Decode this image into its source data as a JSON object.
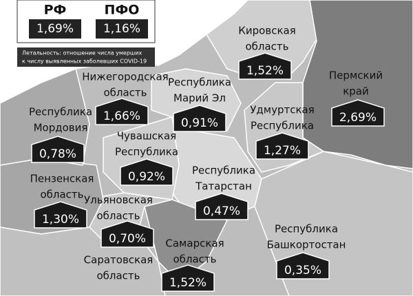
{
  "legend": {
    "items": [
      {
        "label": "РФ",
        "value": "1,69%"
      },
      {
        "label": "ПФО",
        "value": "1,16%"
      }
    ],
    "note": [
      "Летальность: отношение числа умерших",
      "к числу выявленных заболевших COVID-19"
    ]
  },
  "regions": [
    {
      "name": [
        "Кировская",
        "область"
      ],
      "value": "1,52%"
    },
    {
      "name": [
        "Пермский",
        "край"
      ],
      "value": "2,69%"
    },
    {
      "name": [
        "Нижегородская",
        "область"
      ],
      "value": "1,66%"
    },
    {
      "name": [
        "Республика",
        "Марий Эл"
      ],
      "value": "0,91%"
    },
    {
      "name": [
        "Удмуртская",
        "Республика"
      ],
      "value": "1,27%"
    },
    {
      "name": [
        "Республика",
        "Мордовия"
      ],
      "value": "0,78%"
    },
    {
      "name": [
        "Чувашская",
        "Республика"
      ],
      "value": "0,92%"
    },
    {
      "name": [
        "Пензенская",
        "область"
      ],
      "value": "1,30%"
    },
    {
      "name": [
        "Республика",
        "Татарстан"
      ],
      "value": "0,47%"
    },
    {
      "name": [
        "Ульяновская",
        "область"
      ],
      "value": "0,70%"
    },
    {
      "name": [
        "Республика",
        "Башкортостан"
      ],
      "value": "0,35%"
    },
    {
      "name": [
        "Самарская",
        "область"
      ],
      "value": "1,52%"
    },
    {
      "name": [
        "Саратовская",
        "область"
      ]
    }
  ]
}
